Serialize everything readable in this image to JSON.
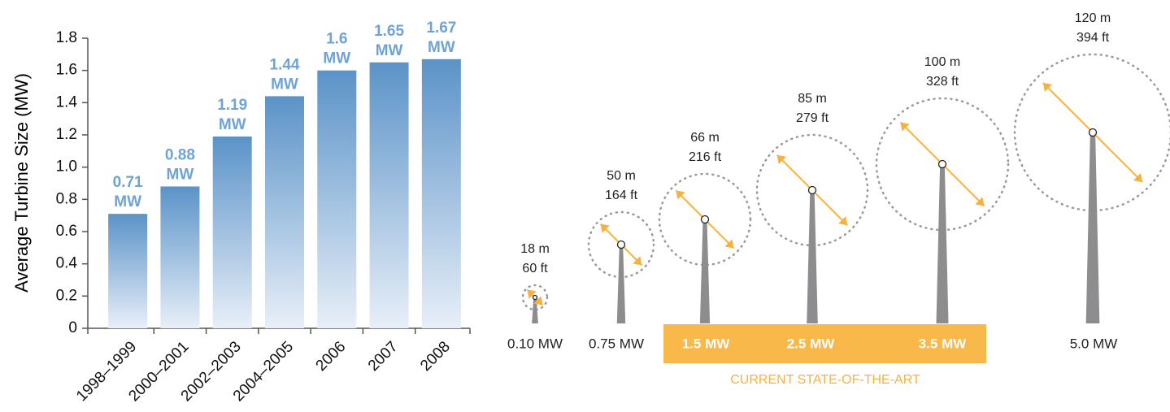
{
  "chart_data": {
    "type": "bar",
    "y_label": "Average Turbine Size (MW)",
    "categories": [
      "1998–1999",
      "2000–2001",
      "2002–2003",
      "2004–2005",
      "2006",
      "2007",
      "2008"
    ],
    "values": [
      0.71,
      0.88,
      1.19,
      1.44,
      1.6,
      1.65,
      1.67
    ],
    "value_labels": [
      "0.71 MW",
      "0.88 MW",
      "1.19 MW",
      "1.44 MW",
      "1.6 MW",
      "1.65 MW",
      "1.67 MW"
    ],
    "color": "#5b93c8",
    "ylim": [
      0,
      1.8
    ],
    "yticks": [
      0,
      0.2,
      0.4,
      0.6,
      0.8,
      {
        "value": 1,
        "label": "1.0"
      },
      1.2,
      1.4,
      1.6,
      1.8
    ]
  },
  "diagram": {
    "turbines": [
      {
        "diameter": "18 m",
        "diameter_ft": "60 ft",
        "capacity": "0.10 MW"
      },
      {
        "diameter": "50 m",
        "diameter_ft": "164 ft",
        "capacity": "0.75 MW"
      },
      {
        "diameter": "66 m",
        "diameter_ft": "216 ft",
        "capacity": "1.5 MW"
      },
      {
        "diameter": "85 m",
        "diameter_ft": "279 ft",
        "capacity": "2.5 MW"
      },
      {
        "diameter": "100 m",
        "diameter_ft": "328 ft",
        "capacity": "3.5 MW"
      },
      {
        "diameter": "120 m",
        "diameter_ft": "394 ft",
        "capacity": "5.0 MW"
      }
    ],
    "highlight_label": "CURRENT STATE-OF-THE-ART"
  }
}
